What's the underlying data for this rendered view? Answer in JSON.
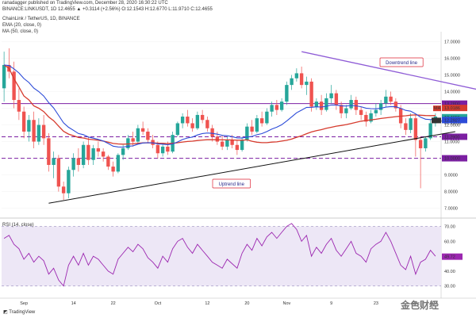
{
  "header": {
    "publisher_line": "ranadagger published on TradingView.com, December 28, 2020 16:30:22 UTC",
    "symbol_line": "BINANCE:LINKUSDT, 1D 12.4655 ▲ +0.3114 (+2.56%) O:12.1543 H:12.6770 L:11.9710 C:12.4655",
    "title_line": "ChainLink / TetherUS, 1D, BINANCE",
    "ema_line": "EMA (20, close, 0)",
    "ma_line": "MA (50, close, 0)",
    "rsi_line": "RSI (14, close)"
  },
  "footer": {
    "logo_text": "TradingView",
    "watermark": "金色财经"
  },
  "annotations": {
    "downtrend": "Downtrend line",
    "uptrend": "Uptrend line"
  },
  "colors": {
    "up": "#26a69a",
    "down": "#ef5350",
    "ema": "#2c4bd8",
    "ma": "#d63b2e",
    "level": "#7b1fa2",
    "rsi": "#9c27b0",
    "rsi_band": "#ede7f6",
    "trend_up": "#111111",
    "trend_down": "#8e5bd6"
  },
  "chart_data": [
    {
      "type": "candlestick",
      "title": "ChainLink / TetherUS, 1D, BINANCE",
      "x_ticks": [
        "Sep",
        "14",
        "22",
        "Oct",
        "12",
        "20",
        "Nov",
        "9",
        "23",
        "Dec",
        "14",
        "22"
      ],
      "y_ticks": [
        "17.0000",
        "16.0000",
        "15.0000",
        "14.0000",
        "13.0000",
        "12.0000",
        "11.0000",
        "10.0000",
        "9.0000",
        "8.0000",
        "7.0000"
      ],
      "ylim": [
        6.6,
        17.5
      ],
      "levels": [
        {
          "value": 13.28,
          "label": "13.2800",
          "style": "solid"
        },
        {
          "value": 11.29,
          "label": "11.2900",
          "style": "dashed"
        },
        {
          "value": 10.0,
          "label": "10.0000",
          "style": "dashed"
        }
      ],
      "last_price": {
        "value": 12.4655,
        "label": "12.4655",
        "time_label": "07:29:39"
      },
      "ma_value": {
        "value": 13.0186,
        "label": "13.0186",
        "name": "MA"
      },
      "ema_value": {
        "value": 12.2927,
        "label": "12.2927",
        "name": "EMA"
      },
      "trendlines": [
        {
          "name": "Uptrend line",
          "from": [
            9,
            7.3
          ],
          "to": [
            91,
            11.6
          ]
        },
        {
          "name": "Downtrend line",
          "from": [
            60,
            16.4
          ],
          "to": [
            110,
            13.2
          ]
        }
      ],
      "candles": [
        [
          14.2,
          16.4,
          13.4,
          15.6
        ],
        [
          15.6,
          16.6,
          14.8,
          15.2
        ],
        [
          15.2,
          15.8,
          13.0,
          13.5
        ],
        [
          13.5,
          14.2,
          12.3,
          12.8
        ],
        [
          12.8,
          13.1,
          11.2,
          11.6
        ],
        [
          11.6,
          12.6,
          11.0,
          12.3
        ],
        [
          12.3,
          12.8,
          10.6,
          11.0
        ],
        [
          11.0,
          12.4,
          10.8,
          12.0
        ],
        [
          12.0,
          12.6,
          10.8,
          11.2
        ],
        [
          11.2,
          11.5,
          9.2,
          9.6
        ],
        [
          9.6,
          10.4,
          8.8,
          10.0
        ],
        [
          10.0,
          10.2,
          8.0,
          8.3
        ],
        [
          8.3,
          8.6,
          7.5,
          7.9
        ],
        [
          7.9,
          9.5,
          7.6,
          9.3
        ],
        [
          9.3,
          10.3,
          8.9,
          10.0
        ],
        [
          10.0,
          10.6,
          9.2,
          9.6
        ],
        [
          9.6,
          11.0,
          9.4,
          10.8
        ],
        [
          10.8,
          11.3,
          9.6,
          9.9
        ],
        [
          9.9,
          10.8,
          9.6,
          10.6
        ],
        [
          10.6,
          11.0,
          10.1,
          10.4
        ],
        [
          10.4,
          10.6,
          9.8,
          10.1
        ],
        [
          10.1,
          10.2,
          9.3,
          9.5
        ],
        [
          9.5,
          9.8,
          8.9,
          9.2
        ],
        [
          9.2,
          10.3,
          9.1,
          10.2
        ],
        [
          10.2,
          10.8,
          9.9,
          10.6
        ],
        [
          10.6,
          11.4,
          10.5,
          11.2
        ],
        [
          11.2,
          11.6,
          10.7,
          11.0
        ],
        [
          11.0,
          12.0,
          10.9,
          11.8
        ],
        [
          11.8,
          12.2,
          11.4,
          11.6
        ],
        [
          11.6,
          11.8,
          10.9,
          11.1
        ],
        [
          11.1,
          11.4,
          10.6,
          10.8
        ],
        [
          10.8,
          11.0,
          10.0,
          10.3
        ],
        [
          10.3,
          10.9,
          10.1,
          10.7
        ],
        [
          10.7,
          11.0,
          10.2,
          10.4
        ],
        [
          10.4,
          11.6,
          10.3,
          11.4
        ],
        [
          11.4,
          12.2,
          11.3,
          12.1
        ],
        [
          12.1,
          12.7,
          11.8,
          12.5
        ],
        [
          12.5,
          12.9,
          11.9,
          12.1
        ],
        [
          12.1,
          12.4,
          11.6,
          11.8
        ],
        [
          11.8,
          12.8,
          11.7,
          12.6
        ],
        [
          12.6,
          12.9,
          12.1,
          12.3
        ],
        [
          12.3,
          12.5,
          11.6,
          11.8
        ],
        [
          11.8,
          12.0,
          11.0,
          11.3
        ],
        [
          11.3,
          11.6,
          10.8,
          11.0
        ],
        [
          11.0,
          11.4,
          10.5,
          10.7
        ],
        [
          10.7,
          11.3,
          10.5,
          11.1
        ],
        [
          11.1,
          11.4,
          10.6,
          10.8
        ],
        [
          10.8,
          11.1,
          10.2,
          10.5
        ],
        [
          10.5,
          11.3,
          10.4,
          11.1
        ],
        [
          11.1,
          12.1,
          11.0,
          11.9
        ],
        [
          11.9,
          12.3,
          11.4,
          11.6
        ],
        [
          11.6,
          12.6,
          11.5,
          12.4
        ],
        [
          12.4,
          12.8,
          11.9,
          12.1
        ],
        [
          12.1,
          13.0,
          12.0,
          12.8
        ],
        [
          12.8,
          13.4,
          12.5,
          13.2
        ],
        [
          13.2,
          13.5,
          12.6,
          12.9
        ],
        [
          12.9,
          13.6,
          12.8,
          13.4
        ],
        [
          13.4,
          14.6,
          13.2,
          14.4
        ],
        [
          14.4,
          15.0,
          14.1,
          14.8
        ],
        [
          14.8,
          15.4,
          14.6,
          15.1
        ],
        [
          15.1,
          15.5,
          14.2,
          14.4
        ],
        [
          14.4,
          14.9,
          13.8,
          14.6
        ],
        [
          14.6,
          14.8,
          12.8,
          13.1
        ],
        [
          13.1,
          13.6,
          12.9,
          13.4
        ],
        [
          13.4,
          13.8,
          12.6,
          12.9
        ],
        [
          12.9,
          13.9,
          12.8,
          13.6
        ],
        [
          13.6,
          14.4,
          13.3,
          13.9
        ],
        [
          13.9,
          14.1,
          12.9,
          13.2
        ],
        [
          13.2,
          13.4,
          12.4,
          12.7
        ],
        [
          12.7,
          13.2,
          12.4,
          13.0
        ],
        [
          13.0,
          13.8,
          12.9,
          13.5
        ],
        [
          13.5,
          13.7,
          12.6,
          12.9
        ],
        [
          12.9,
          13.1,
          12.3,
          12.6
        ],
        [
          12.6,
          12.8,
          11.9,
          12.2
        ],
        [
          12.2,
          12.9,
          12.1,
          12.7
        ],
        [
          12.7,
          13.3,
          12.5,
          12.9
        ],
        [
          12.9,
          13.5,
          12.6,
          13.3
        ],
        [
          13.3,
          14.1,
          13.1,
          13.7
        ],
        [
          13.7,
          14.0,
          13.2,
          13.4
        ],
        [
          13.4,
          13.6,
          12.8,
          13.0
        ],
        [
          13.0,
          13.2,
          11.8,
          12.1
        ],
        [
          12.1,
          12.4,
          11.4,
          11.7
        ],
        [
          11.7,
          12.7,
          11.5,
          12.4
        ],
        [
          12.4,
          12.6,
          10.1,
          11.1
        ],
        [
          11.1,
          11.3,
          8.2,
          10.6
        ],
        [
          10.6,
          11.3,
          10.4,
          11.2
        ],
        [
          11.2,
          12.3,
          11.1,
          12.1
        ],
        [
          12.1,
          12.7,
          11.9,
          12.5
        ]
      ]
    },
    {
      "type": "line",
      "title": "RSI (14, close)",
      "y_ticks": [
        "70.00",
        "60.00",
        "50.00",
        "40.00",
        "30.00"
      ],
      "ylim": [
        24,
        74
      ],
      "band": [
        30,
        70
      ],
      "last": {
        "value": 49.72,
        "label": "49.72"
      },
      "values": [
        62,
        64,
        58,
        55,
        48,
        52,
        46,
        50,
        47,
        38,
        42,
        34,
        30,
        44,
        50,
        44,
        52,
        44,
        50,
        48,
        44,
        40,
        38,
        48,
        52,
        56,
        53,
        58,
        55,
        49,
        46,
        42,
        50,
        46,
        55,
        60,
        62,
        56,
        52,
        58,
        54,
        50,
        46,
        44,
        42,
        48,
        45,
        42,
        52,
        58,
        54,
        62,
        57,
        63,
        66,
        62,
        66,
        70,
        72,
        68,
        60,
        64,
        50,
        56,
        52,
        58,
        62,
        54,
        50,
        55,
        60,
        52,
        50,
        46,
        55,
        58,
        60,
        66,
        60,
        52,
        44,
        41,
        50,
        38,
        46,
        48,
        54,
        50
      ]
    }
  ]
}
